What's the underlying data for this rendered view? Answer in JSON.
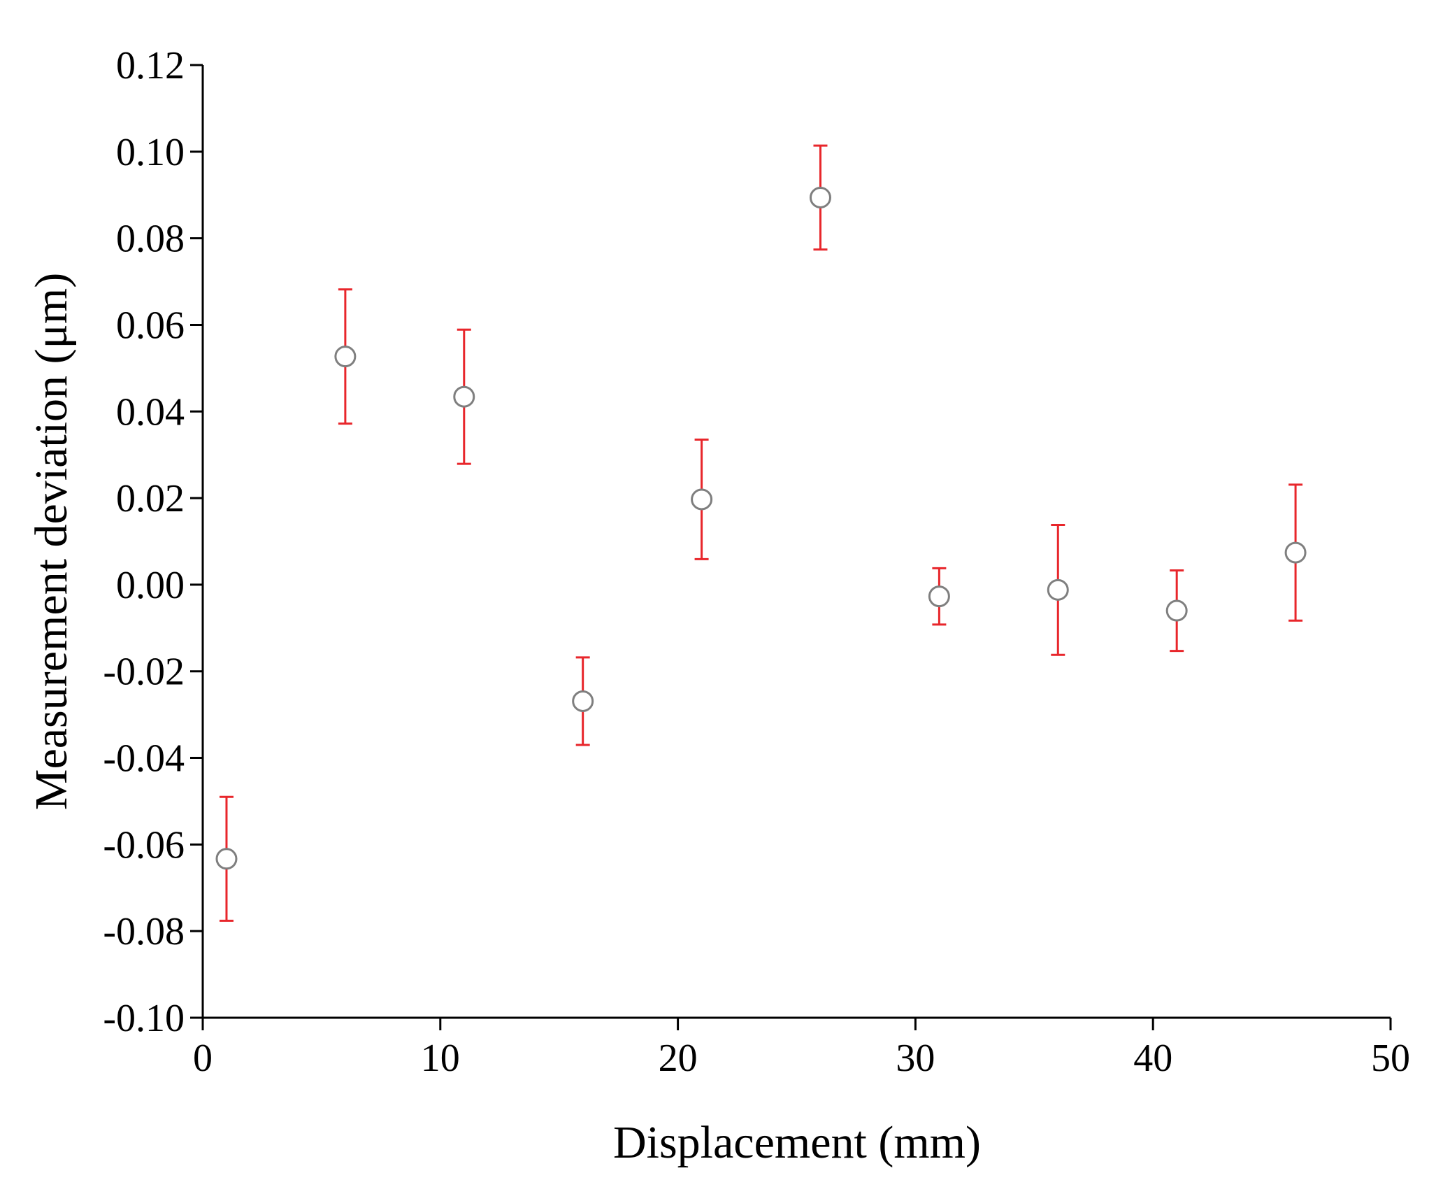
{
  "chart_data": {
    "type": "errorbar",
    "x_label": "Displacement (mm)",
    "y_label": "Measurement deviation (μm)",
    "x": [
      1,
      6,
      11,
      16,
      21,
      26,
      31,
      36,
      41,
      46
    ],
    "values": [
      -0.0633,
      0.0527,
      0.0434,
      -0.0269,
      0.0197,
      0.0894,
      -0.0027,
      -0.0012,
      -0.006,
      0.0074
    ],
    "errors": [
      0.0143,
      0.0155,
      0.0155,
      0.0101,
      0.0138,
      0.012,
      0.0065,
      0.015,
      0.0093,
      0.0157
    ],
    "marker_color": "#7f7f7f",
    "error_color": "#e8262b",
    "xlim": [
      0,
      50
    ],
    "xticks": [
      0,
      10,
      20,
      30,
      40,
      50
    ],
    "ylim": [
      -0.1,
      0.12
    ],
    "yticks": [
      {
        "value": -0.1,
        "label": "-0.10"
      },
      {
        "value": -0.08,
        "label": "-0.08"
      },
      {
        "value": -0.06,
        "label": "-0.06"
      },
      {
        "value": -0.04,
        "label": "-0.04"
      },
      {
        "value": -0.02,
        "label": "-0.02"
      },
      {
        "value": 0,
        "label": "0.00"
      },
      {
        "value": 0.02,
        "label": "0.02"
      },
      {
        "value": 0.04,
        "label": "0.04"
      },
      {
        "value": 0.06,
        "label": "0.06"
      },
      {
        "value": 0.08,
        "label": "0.08"
      },
      {
        "value": 0.1,
        "label": "0.10"
      },
      {
        "value": 0.12,
        "label": "0.12"
      }
    ]
  }
}
